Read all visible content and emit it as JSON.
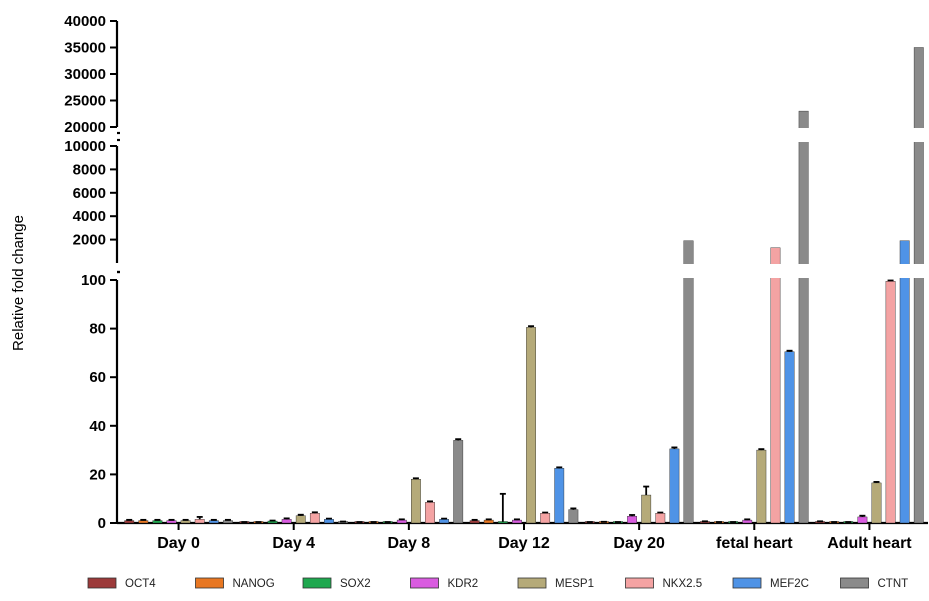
{
  "chart_data": {
    "type": "bar",
    "ylabel": "Relative fold change",
    "xlabel": "",
    "categories": [
      "Day 0",
      "Day 4",
      "Day 8",
      "Day 12",
      "Day 20",
      "fetal heart",
      "Adult heart"
    ],
    "y_axis_segments": [
      {
        "range": [
          0,
          100
        ],
        "ticks": [
          0,
          20,
          40,
          60,
          80,
          100
        ]
      },
      {
        "range": [
          0,
          10000
        ],
        "ticks": [
          2000,
          4000,
          6000,
          8000,
          10000
        ]
      },
      {
        "range": [
          20000,
          40000
        ],
        "ticks": [
          20000,
          25000,
          30000,
          35000,
          40000
        ]
      }
    ],
    "series": [
      {
        "name": "OCT4",
        "color": "#9c3a3a",
        "values": [
          1,
          0.3,
          0.3,
          1,
          0.3,
          0.5,
          0.5
        ],
        "errors": [
          0.3,
          0.1,
          0.1,
          0.3,
          0.1,
          0.2,
          0.2
        ]
      },
      {
        "name": "NANOG",
        "color": "#e87722",
        "values": [
          1,
          0.3,
          0.3,
          1.2,
          0.4,
          0.3,
          0.3
        ],
        "errors": [
          0.3,
          0.1,
          0.1,
          0.3,
          0.1,
          0.1,
          0.1
        ]
      },
      {
        "name": "SOX2",
        "color": "#1fa84f",
        "values": [
          1,
          0.8,
          0.3,
          0.5,
          0.3,
          0.3,
          0.3
        ],
        "errors": [
          0.3,
          0.2,
          0.1,
          11.5,
          0.1,
          0.1,
          0.1
        ]
      },
      {
        "name": "KDR2",
        "color": "#d95ce0",
        "values": [
          1,
          1.5,
          1.2,
          1.2,
          2.8,
          1.2,
          2.5
        ],
        "errors": [
          0.3,
          0.4,
          0.3,
          0.3,
          0.5,
          0.3,
          0.5
        ]
      },
      {
        "name": "MESP1",
        "color": "#b5aa79",
        "values": [
          1,
          3,
          18,
          80.5,
          11.5,
          30,
          16.5
        ],
        "errors": [
          0.3,
          0.4,
          0.4,
          0.5,
          3.5,
          0.4,
          0.4
        ]
      },
      {
        "name": "NKX2.5",
        "color": "#f4a3a3",
        "values": [
          1.5,
          4,
          8.5,
          4,
          4,
          1300,
          99.5
        ],
        "errors": [
          1,
          0.4,
          0.4,
          0.3,
          0.3,
          0,
          0.3
        ]
      },
      {
        "name": "MEF2C",
        "color": "#4f93e6",
        "values": [
          1,
          1.5,
          1.5,
          22.5,
          30.5,
          70.5,
          1900
        ],
        "errors": [
          0.3,
          0.3,
          0.3,
          0.4,
          0.6,
          0.4,
          0
        ]
      },
      {
        "name": "CTNT",
        "color": "#8a8a8a",
        "values": [
          1,
          0.5,
          34,
          5.5,
          1900,
          23000,
          35000
        ],
        "errors": [
          0.3,
          0.1,
          0.5,
          0.5,
          0,
          0,
          0
        ]
      }
    ],
    "legend": "bottom",
    "grid": false
  }
}
